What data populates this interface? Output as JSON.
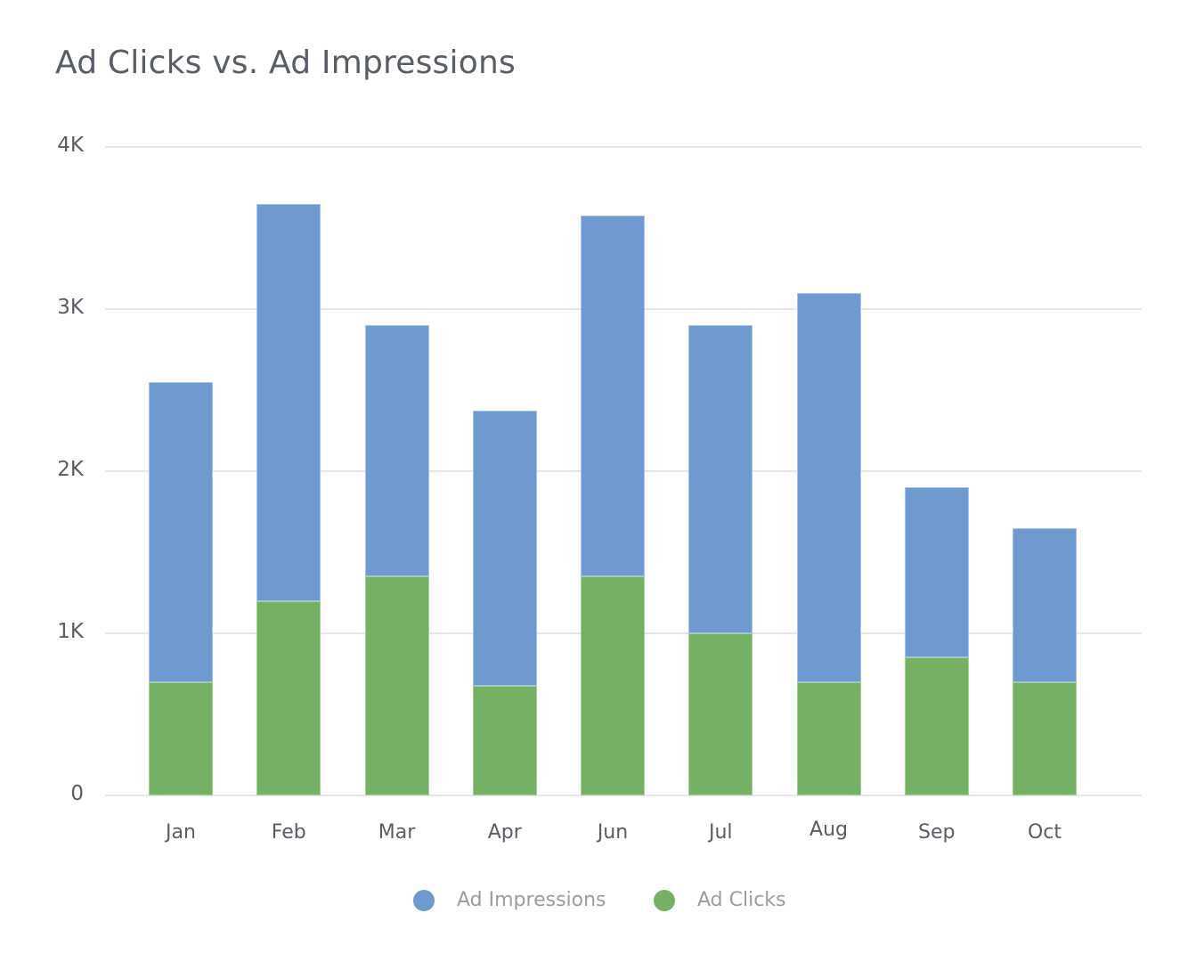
{
  "title": "Ad Clicks vs. Ad Impressions",
  "colors": {
    "impressions": "#6f99d1",
    "clicks": "#75b064",
    "text": "#595d66",
    "legend_text": "#9a9ca3",
    "grid": "#e6e6e6"
  },
  "y_axis": {
    "ticks": [
      "0",
      "1K",
      "2K",
      "3K",
      "4K"
    ]
  },
  "legend": {
    "items": [
      {
        "label": "Ad Impressions",
        "color": "#6f99d1"
      },
      {
        "label": "Ad Clicks",
        "color": "#75b064"
      }
    ]
  },
  "chart_data": {
    "type": "bar",
    "stacked": true,
    "title": "Ad Clicks vs. Ad Impressions",
    "xlabel": "",
    "ylabel": "",
    "categories": [
      "Jan",
      "Feb",
      "Mar",
      "Apr",
      "Jun",
      "Jul",
      "Aug",
      "Sep",
      "Oct"
    ],
    "series": [
      {
        "name": "Ad Clicks",
        "color": "#75b064",
        "values": [
          700,
          1200,
          1350,
          675,
          1350,
          1000,
          700,
          850,
          700
        ]
      },
      {
        "name": "Ad Impressions",
        "color": "#6f99d1",
        "values": [
          1850,
          2450,
          1550,
          1700,
          2225,
          1900,
          2400,
          1050,
          950
        ]
      }
    ],
    "stack_totals": [
      2550,
      3650,
      2900,
      2375,
      3575,
      2900,
      3100,
      1900,
      1650
    ],
    "ylim": [
      0,
      4000
    ],
    "y_ticks": [
      0,
      1000,
      2000,
      3000,
      4000
    ],
    "y_tick_labels": [
      "0",
      "1K",
      "2K",
      "3K",
      "4K"
    ],
    "grid": true,
    "legend_position": "bottom"
  }
}
